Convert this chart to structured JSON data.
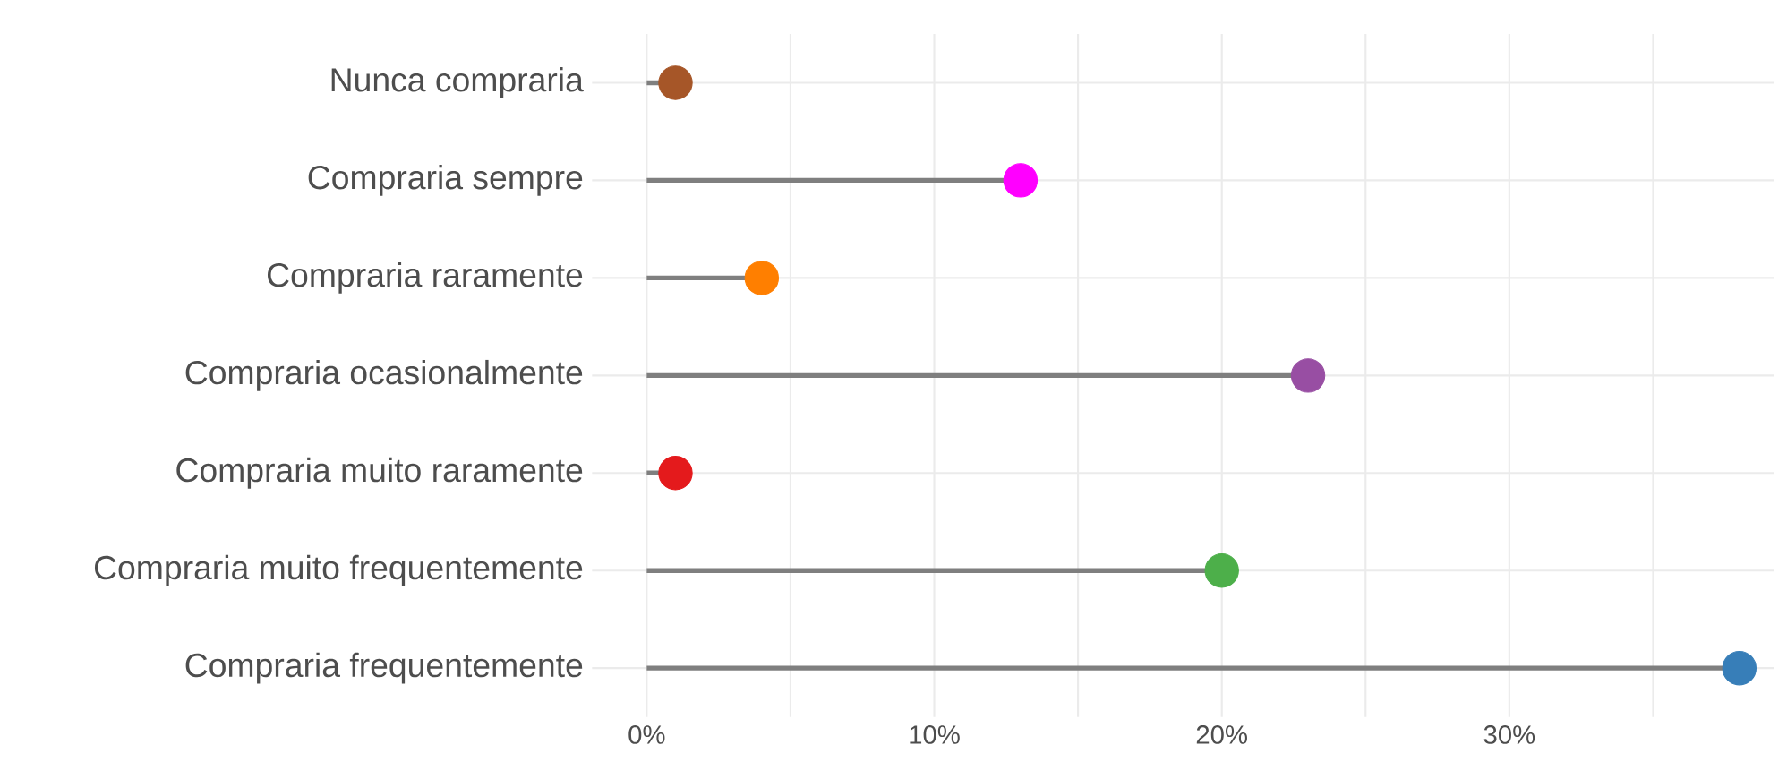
{
  "chart_data": {
    "type": "lollipop",
    "orientation": "horizontal",
    "categories": [
      "Nunca compraria",
      "Compraria sempre",
      "Compraria raramente",
      "Compraria ocasionalmente",
      "Compraria muito raramente",
      "Compraria muito frequentemente",
      "Compraria frequentemente"
    ],
    "values": [
      1,
      13,
      4,
      23,
      1,
      20,
      38
    ],
    "colors": [
      "#a65628",
      "#ff00ff",
      "#ff7f00",
      "#984ea3",
      "#e41a1c",
      "#4daf4a",
      "#377eb8"
    ],
    "xlim": [
      -1.9,
      39.2
    ],
    "xticks": [
      {
        "value": 0,
        "label": "0%"
      },
      {
        "value": 5,
        "label": null
      },
      {
        "value": 10,
        "label": "10%"
      },
      {
        "value": 15,
        "label": null
      },
      {
        "value": 20,
        "label": "20%"
      },
      {
        "value": 25,
        "label": null
      },
      {
        "value": 30,
        "label": "30%"
      },
      {
        "value": 35,
        "label": null
      }
    ],
    "grid": true,
    "marker": "circle"
  }
}
